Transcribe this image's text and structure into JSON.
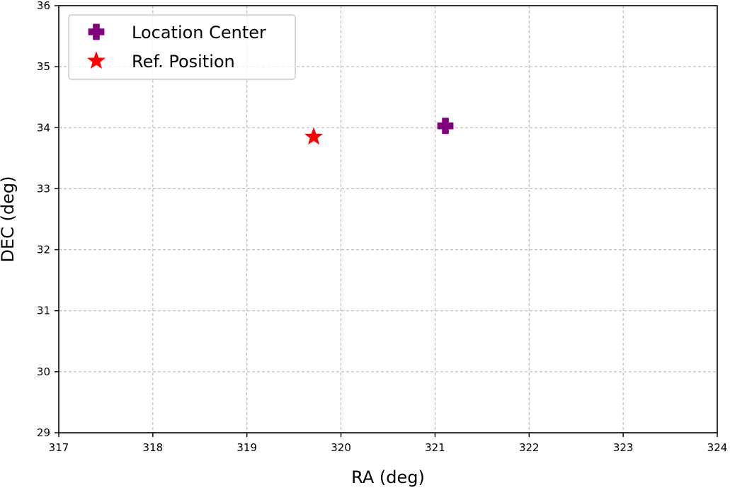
{
  "chart_data": {
    "type": "scatter",
    "xlabel": "RA (deg)",
    "ylabel": "DEC (deg)",
    "xlim": [
      317,
      324
    ],
    "ylim": [
      29,
      36
    ],
    "xticks": [
      317,
      318,
      319,
      320,
      321,
      322,
      323,
      324
    ],
    "yticks": [
      29,
      30,
      31,
      32,
      33,
      34,
      35,
      36
    ],
    "grid": true,
    "legend_position": "top-left",
    "series": [
      {
        "name": "Location Center",
        "marker": "plus-filled",
        "color": "#800080",
        "x": [
          321.11
        ],
        "y": [
          34.03
        ]
      },
      {
        "name": "Ref. Position",
        "marker": "star",
        "color": "#ff0000",
        "x": [
          319.71
        ],
        "y": [
          33.85
        ]
      }
    ]
  }
}
